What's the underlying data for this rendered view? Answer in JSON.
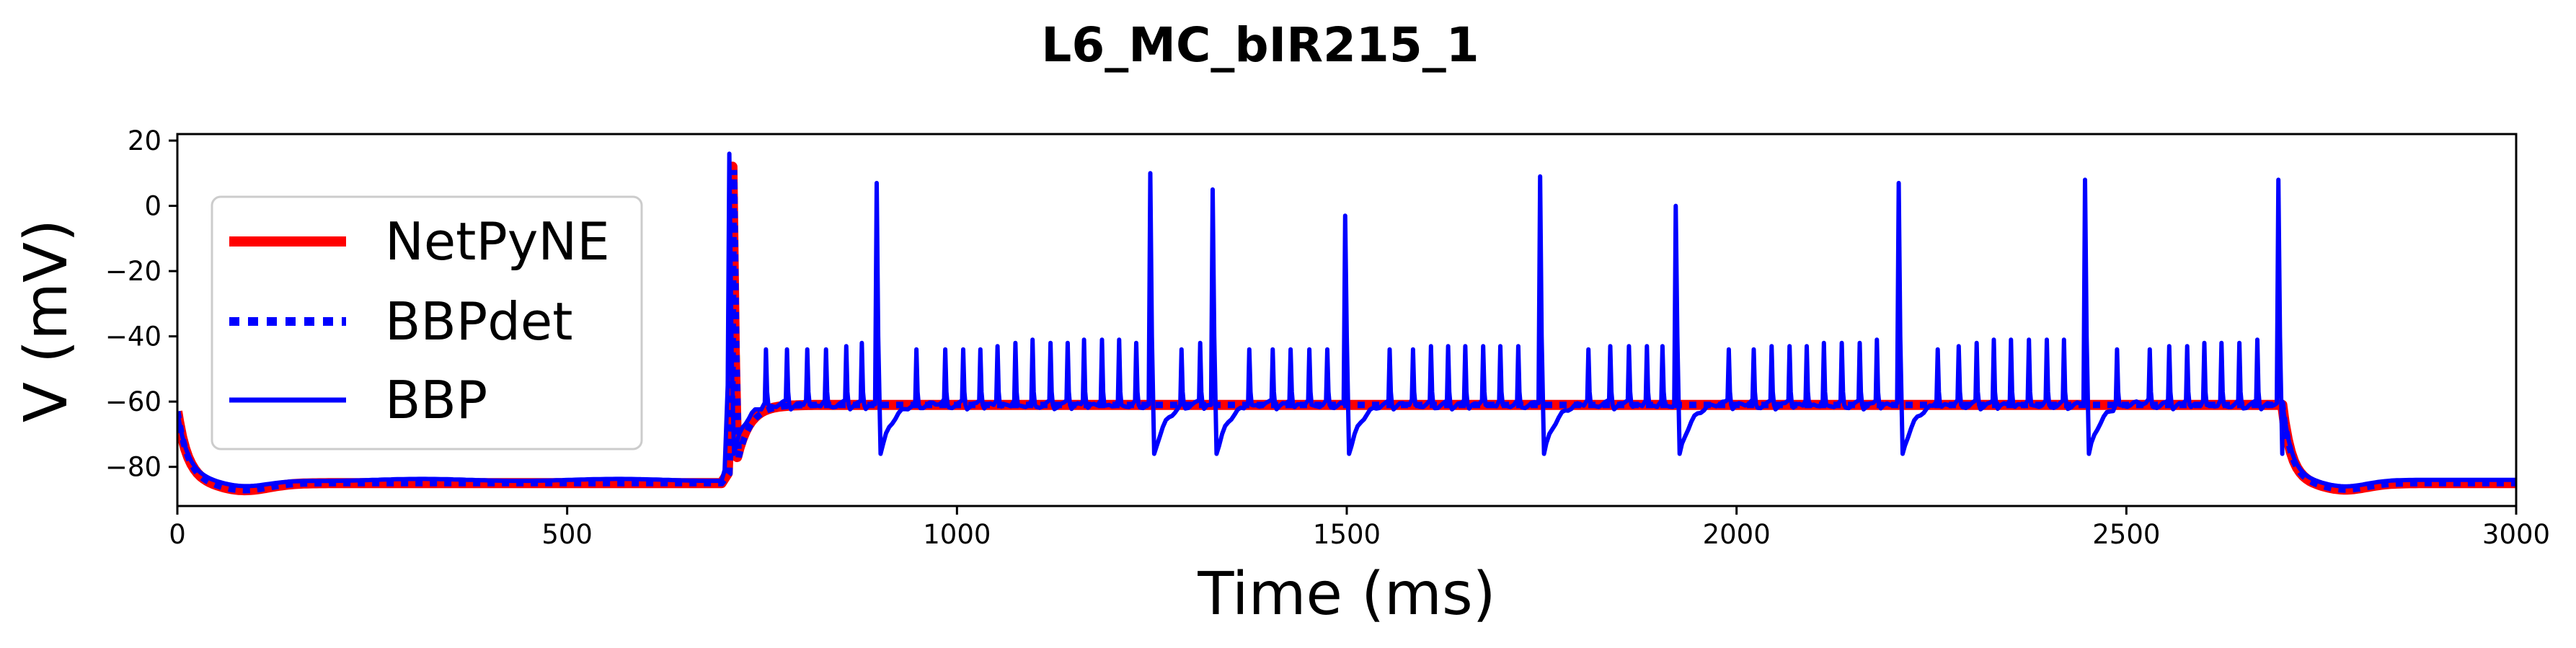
{
  "chart_data": {
    "type": "line",
    "title": "L6_MC_bIR215_1",
    "xlabel": "Time (ms)",
    "ylabel": "V (mV)",
    "xlim": [
      0,
      3000
    ],
    "ylim": [
      -92,
      22
    ],
    "xticks": [
      0,
      500,
      1000,
      1500,
      2000,
      2500,
      3000
    ],
    "yticks": [
      -80,
      -60,
      -40,
      -20,
      0,
      20
    ],
    "xtick_labels": [
      "0",
      "500",
      "1000",
      "1500",
      "2000",
      "2500",
      "3000"
    ],
    "ytick_labels": [
      "−80",
      "−60",
      "−40",
      "−20",
      "0",
      "20"
    ],
    "grid": false,
    "legend_position": "upper-left",
    "stimulus": {
      "start_ms": 700,
      "end_ms": 2700
    },
    "series": [
      {
        "name": "NetPyNE",
        "color": "#ff0000",
        "style": "solid-thick",
        "resting_mV": -85,
        "plateau_mV": -61,
        "spikes": [
          {
            "t": 712,
            "peak": 12,
            "trough": -77
          }
        ]
      },
      {
        "name": "BBPdet",
        "color": "#0000ff",
        "style": "dotted",
        "resting_mV": -85,
        "plateau_mV": -61,
        "spikes": [
          {
            "t": 714,
            "peak": 11,
            "trough": -77
          }
        ]
      },
      {
        "name": "BBP",
        "color": "#0000ff",
        "style": "solid",
        "resting_mV": -84,
        "plateau_mV": -60,
        "big_spikes": [
          {
            "t": 708,
            "peak": 16
          },
          {
            "t": 897,
            "peak": 7
          },
          {
            "t": 1248,
            "peak": 10
          },
          {
            "t": 1328,
            "peak": 5
          },
          {
            "t": 1498,
            "peak": -3
          },
          {
            "t": 1748,
            "peak": 9
          },
          {
            "t": 1922,
            "peak": 0
          },
          {
            "t": 2208,
            "peak": 7
          },
          {
            "t": 2447,
            "peak": 8
          },
          {
            "t": 2695,
            "peak": 8
          }
        ],
        "small_spikes": [
          {
            "t": 755,
            "peak": -44
          },
          {
            "t": 782,
            "peak": -44
          },
          {
            "t": 808,
            "peak": -44
          },
          {
            "t": 832,
            "peak": -44
          },
          {
            "t": 858,
            "peak": -43
          },
          {
            "t": 878,
            "peak": -42
          },
          {
            "t": 948,
            "peak": -44
          },
          {
            "t": 985,
            "peak": -44
          },
          {
            "t": 1008,
            "peak": -44
          },
          {
            "t": 1030,
            "peak": -44
          },
          {
            "t": 1052,
            "peak": -43
          },
          {
            "t": 1075,
            "peak": -42
          },
          {
            "t": 1097,
            "peak": -41
          },
          {
            "t": 1120,
            "peak": -42
          },
          {
            "t": 1142,
            "peak": -42
          },
          {
            "t": 1163,
            "peak": -41
          },
          {
            "t": 1186,
            "peak": -41
          },
          {
            "t": 1208,
            "peak": -41
          },
          {
            "t": 1230,
            "peak": -42
          },
          {
            "t": 1288,
            "peak": -44
          },
          {
            "t": 1312,
            "peak": -42
          },
          {
            "t": 1375,
            "peak": -44
          },
          {
            "t": 1405,
            "peak": -44
          },
          {
            "t": 1428,
            "peak": -44
          },
          {
            "t": 1452,
            "peak": -44
          },
          {
            "t": 1475,
            "peak": -44
          },
          {
            "t": 1555,
            "peak": -44
          },
          {
            "t": 1585,
            "peak": -44
          },
          {
            "t": 1608,
            "peak": -43
          },
          {
            "t": 1630,
            "peak": -43
          },
          {
            "t": 1652,
            "peak": -43
          },
          {
            "t": 1675,
            "peak": -43
          },
          {
            "t": 1697,
            "peak": -43
          },
          {
            "t": 1720,
            "peak": -43
          },
          {
            "t": 1810,
            "peak": -44
          },
          {
            "t": 1838,
            "peak": -43
          },
          {
            "t": 1862,
            "peak": -43
          },
          {
            "t": 1885,
            "peak": -43
          },
          {
            "t": 1905,
            "peak": -43
          },
          {
            "t": 1990,
            "peak": -44
          },
          {
            "t": 2022,
            "peak": -44
          },
          {
            "t": 2045,
            "peak": -43
          },
          {
            "t": 2068,
            "peak": -43
          },
          {
            "t": 2090,
            "peak": -43
          },
          {
            "t": 2112,
            "peak": -42
          },
          {
            "t": 2135,
            "peak": -42
          },
          {
            "t": 2158,
            "peak": -42
          },
          {
            "t": 2180,
            "peak": -41
          },
          {
            "t": 2258,
            "peak": -44
          },
          {
            "t": 2285,
            "peak": -43
          },
          {
            "t": 2308,
            "peak": -42
          },
          {
            "t": 2330,
            "peak": -41
          },
          {
            "t": 2352,
            "peak": -41
          },
          {
            "t": 2375,
            "peak": -41
          },
          {
            "t": 2398,
            "peak": -41
          },
          {
            "t": 2420,
            "peak": -41
          },
          {
            "t": 2488,
            "peak": -44
          },
          {
            "t": 2530,
            "peak": -44
          },
          {
            "t": 2555,
            "peak": -43
          },
          {
            "t": 2578,
            "peak": -43
          },
          {
            "t": 2600,
            "peak": -42
          },
          {
            "t": 2622,
            "peak": -42
          },
          {
            "t": 2645,
            "peak": -42
          },
          {
            "t": 2668,
            "peak": -41
          }
        ]
      }
    ]
  }
}
